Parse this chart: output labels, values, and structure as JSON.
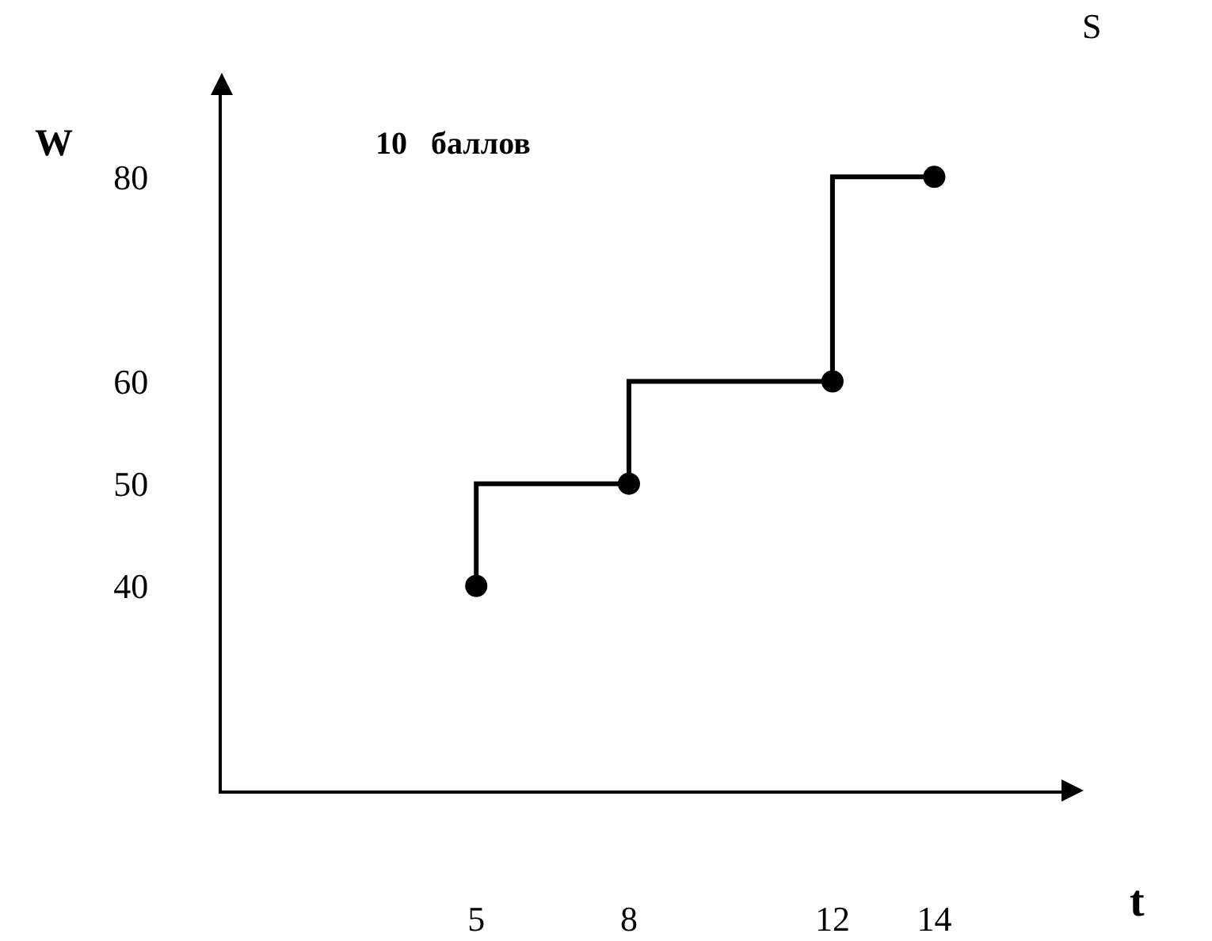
{
  "chart_data": {
    "type": "step",
    "xlabel": "t",
    "ylabel": "W",
    "x": [
      5,
      8,
      12,
      14
    ],
    "series": [
      {
        "color": "#000000",
        "values": [
          40,
          50,
          60,
          80
        ]
      }
    ],
    "xlim": [
      0,
      16.5
    ],
    "ylim": [
      20,
      88
    ],
    "xticks": [
      5,
      8,
      12,
      14
    ],
    "yticks": [
      40,
      50,
      60,
      80
    ],
    "marker": "circle",
    "line_style": "solid",
    "grid": false,
    "legend": false,
    "annotations": [
      "10   баллов",
      "S"
    ]
  }
}
